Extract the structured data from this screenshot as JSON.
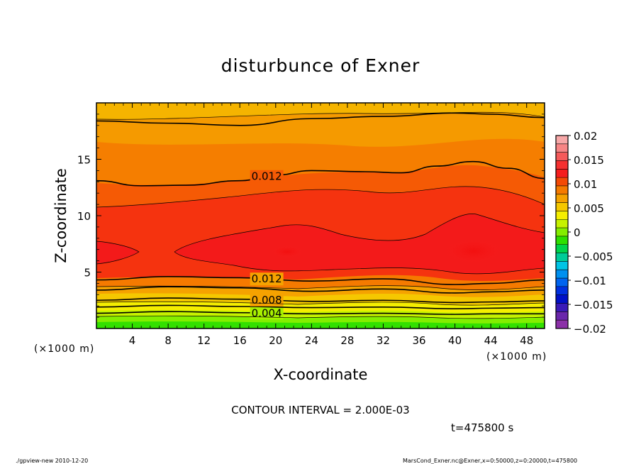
{
  "chart_data": {
    "type": "heatmap",
    "title": "disturbunce of Exner",
    "xlabel": "X-coordinate",
    "ylabel": "Z-coordinate",
    "x_unit": "(×1000 m)",
    "y_unit": "(×1000 m)",
    "xlim": [
      0,
      50
    ],
    "ylim": [
      0,
      20
    ],
    "x_ticks": [
      4,
      8,
      12,
      16,
      20,
      24,
      28,
      32,
      36,
      40,
      44,
      48
    ],
    "y_ticks": [
      5,
      10,
      15
    ],
    "colorbar": {
      "min": -0.02,
      "max": 0.02,
      "tick_values": [
        0.02,
        0.015,
        0.01,
        0.005,
        0,
        -0.005,
        -0.01,
        -0.015,
        -0.02
      ],
      "tick_labels": [
        "0.02",
        "0.015",
        "0.01",
        "0.005",
        "0",
        "−0.005",
        "−0.01",
        "−0.015",
        "−0.02"
      ],
      "bands": [
        "#f7a8a8",
        "#f78585",
        "#f55a5a",
        "#f53030",
        "#f51d1d",
        "#f44a05",
        "#f57a00",
        "#f5a200",
        "#f5c800",
        "#f5ee00",
        "#c6f200",
        "#84ee00",
        "#2ee000",
        "#00d44a",
        "#00cc99",
        "#00c4e6",
        "#0090f0",
        "#0064f0",
        "#0030e0",
        "#0010c8",
        "#3a1ab8",
        "#6a26ab",
        "#8c30a8"
      ]
    },
    "contour_lines": [
      {
        "level": 0.004,
        "label": "0.004",
        "x": [
          0,
          8,
          16,
          24,
          32,
          40,
          44,
          50
        ],
        "z": [
          1.35,
          1.5,
          1.4,
          1.3,
          1.35,
          1.25,
          1.3,
          1.3
        ]
      },
      {
        "level": 0.006,
        "label": "",
        "x": [
          0,
          8,
          16,
          24,
          32,
          40,
          44,
          50
        ],
        "z": [
          1.9,
          2.05,
          1.95,
          1.85,
          1.9,
          1.75,
          1.8,
          1.85
        ]
      },
      {
        "level": 0.008,
        "label": "0.008",
        "x": [
          0,
          8,
          16,
          24,
          32,
          40,
          44,
          50
        ],
        "z": [
          2.5,
          2.7,
          2.6,
          2.4,
          2.5,
          2.3,
          2.35,
          2.45
        ]
      },
      {
        "level": 0.01,
        "label": "",
        "x": [
          0,
          8,
          16,
          24,
          32,
          40,
          44,
          50
        ],
        "z": [
          3.4,
          3.7,
          3.6,
          3.3,
          3.5,
          3.15,
          3.25,
          3.4
        ]
      },
      {
        "level": 0.012,
        "label": "0.012",
        "x": [
          0,
          8,
          16,
          24,
          32,
          40,
          44,
          50
        ],
        "z": [
          4.3,
          4.6,
          4.5,
          4.2,
          4.4,
          3.9,
          4.0,
          4.3
        ]
      },
      {
        "level": 0.012,
        "label": "0.012",
        "x": [
          0,
          5,
          10,
          16,
          20,
          24,
          30,
          34,
          38,
          42,
          46,
          50
        ],
        "z": [
          13.1,
          12.65,
          12.7,
          13.1,
          13.6,
          14.0,
          13.9,
          13.8,
          14.4,
          14.8,
          14.2,
          13.3
        ]
      },
      {
        "level": 0.01,
        "label": "",
        "x": [
          0,
          8,
          16,
          24,
          32,
          40,
          44,
          50
        ],
        "z": [
          18.4,
          18.2,
          18.0,
          18.6,
          18.8,
          19.1,
          19.0,
          18.7
        ]
      }
    ],
    "contour_interval_text": "CONTOUR INTERVAL = 2.000E-03",
    "time_text": "t=475800  s"
  },
  "footer": {
    "left": "./gpview-new   2010-12-20",
    "right": "MarsCond_Exner.nc@Exner,x=0:50000,z=0:20000,t=475800"
  }
}
